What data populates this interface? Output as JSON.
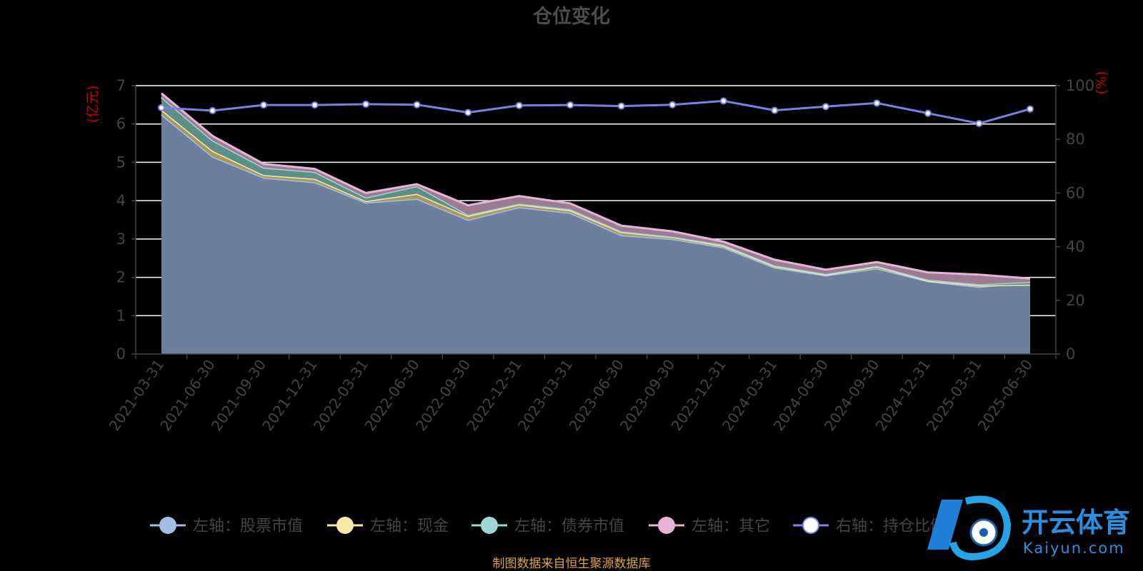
{
  "chart_data": {
    "type": "area",
    "title": "仓位变化",
    "y_left_unit": "(亿元)",
    "y_right_unit": "(%)",
    "y_left_range": [
      0,
      7
    ],
    "y_left_ticks": [
      "0",
      "1",
      "2",
      "3",
      "4",
      "5",
      "6",
      "7"
    ],
    "y_right_range": [
      0,
      100
    ],
    "y_right_ticks": [
      "0",
      "20",
      "40",
      "60",
      "80",
      "100"
    ],
    "grid": true,
    "legend_position": "bottom",
    "categories": [
      "2021-03-31",
      "2021-06-30",
      "2021-09-30",
      "2021-12-31",
      "2022-03-31",
      "2022-06-30",
      "2022-09-30",
      "2022-12-31",
      "2023-03-31",
      "2023-06-30",
      "2023-09-30",
      "2023-12-31",
      "2024-03-31",
      "2024-06-30",
      "2024-09-30",
      "2024-12-31",
      "2025-03-31",
      "2025-06-30"
    ],
    "series": [
      {
        "name": "左轴：股票市值",
        "axis": "left",
        "color": "#a4bde6",
        "values": [
          6.25,
          5.15,
          4.6,
          4.48,
          3.95,
          4.05,
          3.5,
          3.83,
          3.68,
          3.1,
          3.0,
          2.78,
          2.25,
          2.05,
          2.23,
          1.9,
          1.75,
          1.88
        ]
      },
      {
        "name": "左轴：现金",
        "axis": "left",
        "color": "#fbe7a8",
        "values": [
          0.12,
          0.15,
          0.07,
          0.09,
          0.04,
          0.13,
          0.1,
          0.07,
          0.07,
          0.08,
          0.05,
          0.04,
          0.04,
          0.02,
          0.05,
          0.01,
          0.04,
          -0.07
        ]
      },
      {
        "name": "左轴：债券市值",
        "axis": "left",
        "color": "#9fd6d6",
        "values": [
          0.33,
          0.27,
          0.19,
          0.18,
          0.09,
          0.2,
          0.03,
          0.02,
          0.03,
          0.02,
          0.01,
          0.03,
          0.02,
          0.02,
          0.02,
          0.03,
          0.03,
          0.07
        ]
      },
      {
        "name": "左轴：其它",
        "axis": "left",
        "color": "#e6b4d6",
        "values": [
          0.1,
          0.12,
          0.1,
          0.08,
          0.12,
          0.05,
          0.25,
          0.2,
          0.15,
          0.15,
          0.14,
          0.08,
          0.15,
          0.11,
          0.1,
          0.19,
          0.25,
          0.09
        ]
      },
      {
        "name": "右轴：持仓比例",
        "axis": "right",
        "color": "#7b7fe8",
        "values": [
          91.8,
          90.7,
          92.8,
          92.8,
          93.1,
          92.9,
          90.0,
          92.6,
          92.8,
          92.4,
          92.9,
          94.3,
          90.8,
          92.2,
          93.5,
          89.7,
          85.9,
          91.3
        ]
      }
    ]
  },
  "footer": {
    "source": "制图数据来自恒生聚源数据库"
  },
  "watermark": {
    "brand_cn": "开云体育",
    "brand_en": "Kaiyun.com"
  }
}
